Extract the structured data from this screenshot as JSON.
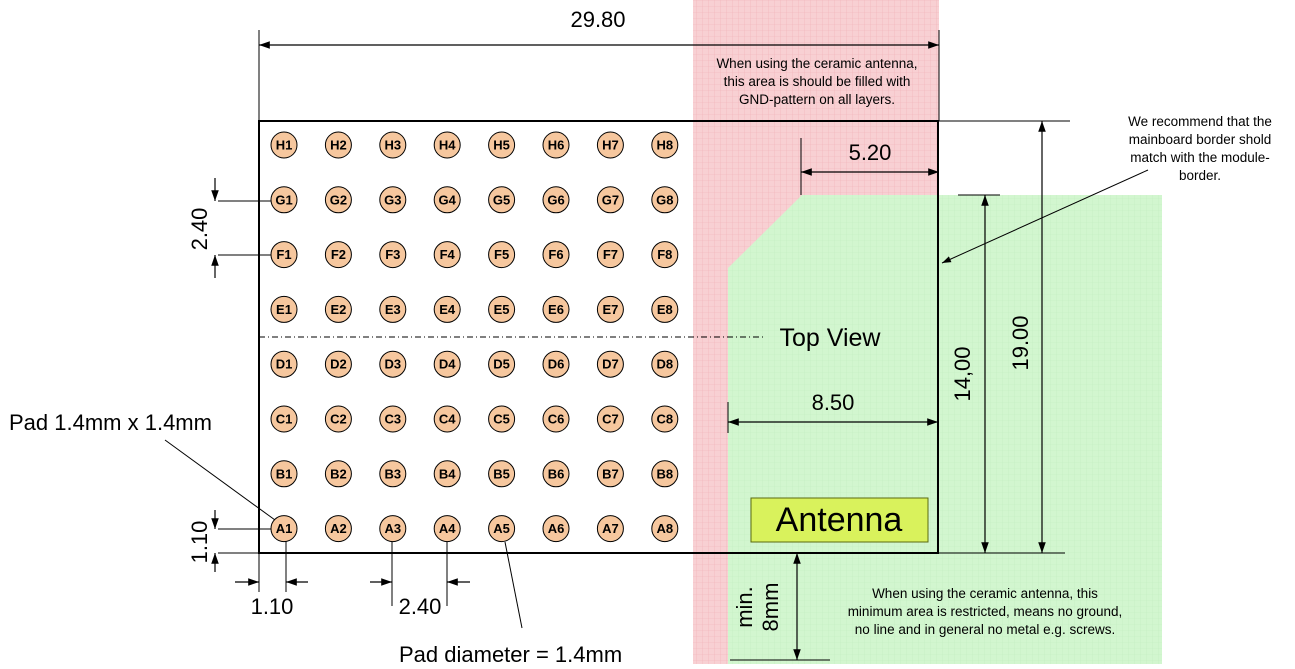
{
  "colors": {
    "gnd_area": "#f7cdd0",
    "gnd_grid": "#f2b4b8",
    "restricted_area": "#d4f7d2",
    "restricted_grid": "#c6efc3",
    "pad_fill": "#f6c79e",
    "antenna_fill": "#d7f25a"
  },
  "dimensions": {
    "width_total": "29.80",
    "gnd_width": "5.20",
    "antenna_width": "8.50",
    "height_restricted": "14,00",
    "height_total": "19.00",
    "pitch_vertical": "2.40",
    "edge_vertical": "1.10",
    "edge_horizontal": "1.10",
    "pitch_horizontal": "2.40",
    "min_clearance_line1": "min.",
    "min_clearance_line2": "8mm"
  },
  "notes": {
    "gnd_note": [
      "When using the ceramic antenna,",
      "this area is should be filled with",
      "GND-pattern on all layers."
    ],
    "border_note": [
      "We recommend that the",
      "mainboard border shold",
      "match with the module-",
      "border."
    ],
    "restricted_note": [
      "When using the ceramic antenna, this",
      "minimum area is restricted, means no ground,",
      "no line and in general no metal e.g. screws."
    ]
  },
  "labels": {
    "top_view": "Top View",
    "antenna": "Antenna",
    "pad_size": "Pad 1.4mm x 1.4mm",
    "pad_diameter": "Pad diameter = 1.4mm"
  },
  "pads": {
    "rows": [
      "H",
      "G",
      "F",
      "E",
      "D",
      "C",
      "B",
      "A"
    ],
    "columns": [
      "1",
      "2",
      "3",
      "4",
      "5",
      "6",
      "7",
      "8"
    ]
  }
}
